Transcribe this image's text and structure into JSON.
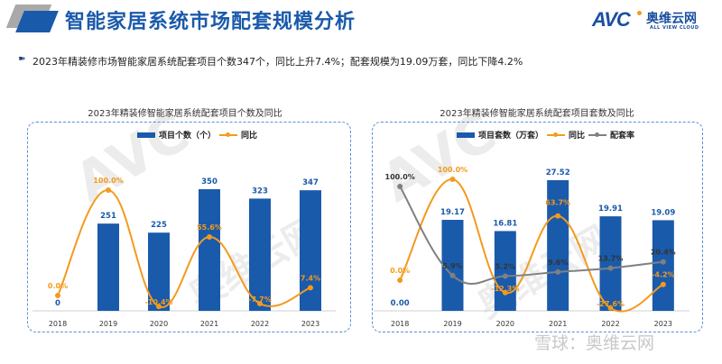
{
  "header": {
    "title": "智能家居系统市场配套规模分析",
    "logo_text": "AVC",
    "logo_cn": "奥维云网",
    "logo_en": "ALL VIEW CLOUD"
  },
  "summary": {
    "icon": "arrow-bullet-icon",
    "text": "2023年精装修市场智能家居系统配套项目个数347个，同比上升7.4%；配套规模为19.09万套，同比下降4.2%"
  },
  "watermark": {
    "brand": "AVC 奥维云网",
    "source": "雪球：奥维云网"
  },
  "colors": {
    "bar": "#1a5aab",
    "yoy": "#f39a1e",
    "ratio": "#808080",
    "title": "#1a5aab"
  },
  "chart_data": [
    {
      "type": "bar",
      "title": "2023年精装修智能家居系统配套项目个数及同比",
      "categories": [
        "2018",
        "2019",
        "2020",
        "2021",
        "2022",
        "2023"
      ],
      "series": [
        {
          "name": "项目个数（个）",
          "kind": "bar",
          "values": [
            0,
            251,
            225,
            350,
            323,
            347
          ],
          "labels": [
            "0",
            "251",
            "225",
            "350",
            "323",
            "347"
          ]
        },
        {
          "name": "同比",
          "kind": "line",
          "values": [
            0.0,
            100.0,
            -10.4,
            55.6,
            -7.7,
            7.4
          ],
          "labels": [
            "0.0%",
            "100.0%",
            "-10.4%",
            "55.6%",
            "-7.7%",
            "7.4%"
          ]
        }
      ],
      "legend": "top-center",
      "grid": false
    },
    {
      "type": "bar",
      "title": "2023年精装修智能家居系统配套项目套数及同比",
      "categories": [
        "2018",
        "2019",
        "2020",
        "2021",
        "2022",
        "2023"
      ],
      "series": [
        {
          "name": "项目套数（万套）",
          "kind": "bar",
          "values": [
            0.0,
            19.17,
            16.81,
            27.52,
            19.91,
            19.09
          ],
          "labels": [
            "0.00",
            "19.17",
            "16.81",
            "27.52",
            "19.91",
            "19.09"
          ]
        },
        {
          "name": "同比",
          "kind": "line",
          "values": [
            0.0,
            100.0,
            -12.3,
            63.7,
            -27.6,
            -4.2
          ],
          "labels": [
            "0.0%",
            "100.0%",
            "-12.3%",
            "63.7%",
            "-27.6%",
            "-4.2%"
          ]
        },
        {
          "name": "配套率",
          "kind": "line",
          "values": [
            100.0,
            5.9,
            5.2,
            9.6,
            13.7,
            20.4
          ],
          "labels": [
            "100.0%",
            "5.9%",
            "5.2%",
            "9.6%",
            "13.7%",
            "20.4%"
          ]
        }
      ],
      "legend": "top-center",
      "grid": false
    }
  ]
}
